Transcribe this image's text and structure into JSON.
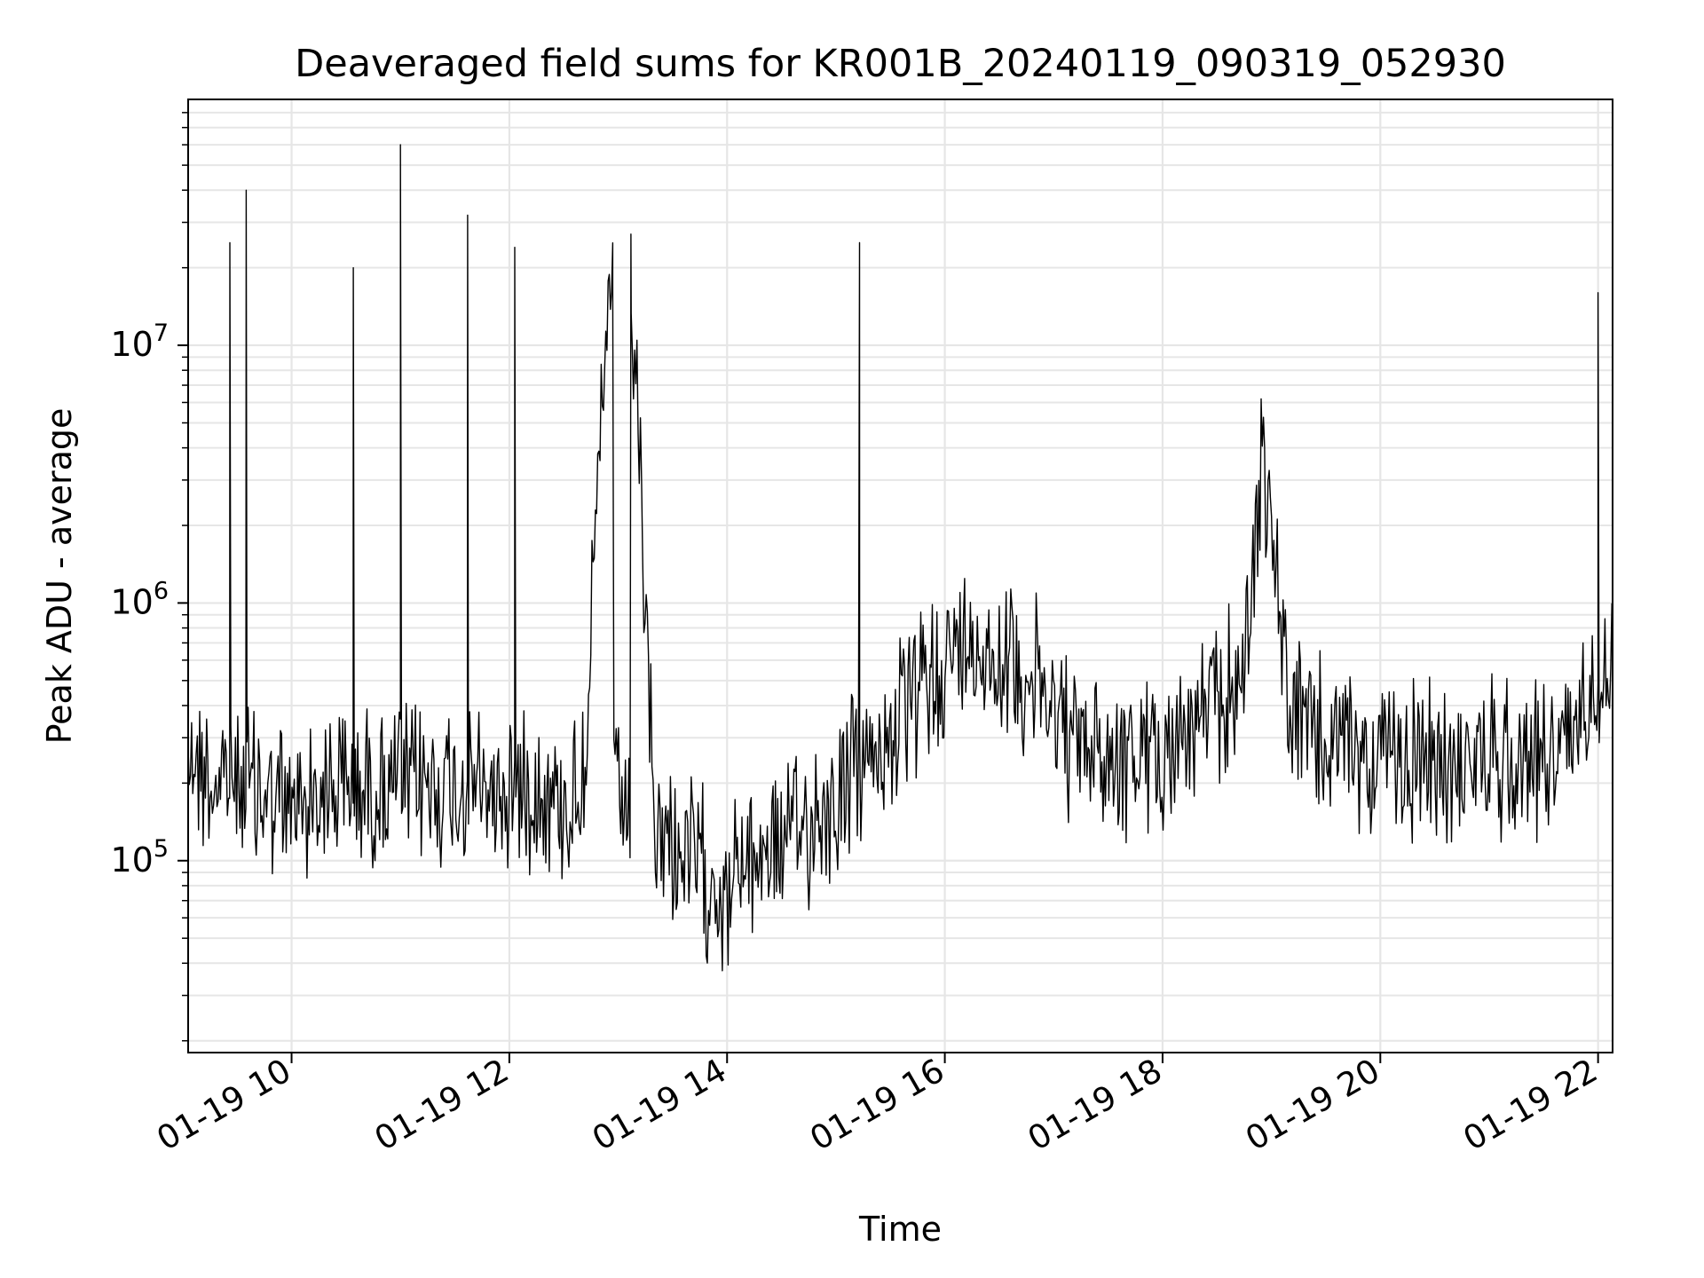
{
  "chart_data": {
    "type": "line",
    "title": "Deaveraged field sums for KR001B_20240119_090319_052930",
    "xlabel": "Time",
    "ylabel": "Peak ADU - average",
    "y_scale": "log",
    "grid": true,
    "grid_minor": true,
    "legend": "none",
    "line_color": "#000000",
    "grid_color": "#e6e6e6",
    "xlim": [
      "2024-01-19 09:03",
      "2024-01-19 22:08"
    ],
    "ylim": [
      18000,
      90000000
    ],
    "x_ticks": [
      {
        "time": "2024-01-19 10:00",
        "label": "01-19 10"
      },
      {
        "time": "2024-01-19 12:00",
        "label": "01-19 12"
      },
      {
        "time": "2024-01-19 14:00",
        "label": "01-19 14"
      },
      {
        "time": "2024-01-19 16:00",
        "label": "01-19 16"
      },
      {
        "time": "2024-01-19 18:00",
        "label": "01-19 18"
      },
      {
        "time": "2024-01-19 20:00",
        "label": "01-19 20"
      },
      {
        "time": "2024-01-19 22:00",
        "label": "01-19 22"
      }
    ],
    "y_ticks": [
      {
        "value": 100000,
        "base": "10",
        "exp": "5"
      },
      {
        "value": 1000000,
        "base": "10",
        "exp": "6"
      },
      {
        "value": 10000000,
        "base": "10",
        "exp": "7"
      }
    ],
    "series": [
      {
        "x": [
          "2024-01-19 09:03",
          "2024-01-19 09:10",
          "2024-01-19 09:20",
          "2024-01-19 09:26",
          "2024-01-19 09:30",
          "2024-01-19 09:35",
          "2024-01-19 09:40",
          "2024-01-19 09:50",
          "2024-01-19 10:00",
          "2024-01-19 10:20",
          "2024-01-19 10:34",
          "2024-01-19 10:45",
          "2024-01-19 11:00",
          "2024-01-19 11:15",
          "2024-01-19 11:37",
          "2024-01-19 11:50",
          "2024-01-19 12:00",
          "2024-01-19 12:03",
          "2024-01-19 12:15",
          "2024-01-19 12:30",
          "2024-01-19 12:40",
          "2024-01-19 12:57",
          "2024-01-19 13:07",
          "2024-01-19 13:20",
          "2024-01-19 13:40",
          "2024-01-19 13:55",
          "2024-01-19 14:00",
          "2024-01-19 14:05",
          "2024-01-19 14:20",
          "2024-01-19 14:40",
          "2024-01-19 15:00",
          "2024-01-19 15:10",
          "2024-01-19 15:13",
          "2024-01-19 15:20",
          "2024-01-19 15:40",
          "2024-01-19 16:00",
          "2024-01-19 16:20",
          "2024-01-19 16:40",
          "2024-01-19 16:55",
          "2024-01-19 17:10",
          "2024-01-19 17:30",
          "2024-01-19 17:50",
          "2024-01-19 18:10",
          "2024-01-19 18:30",
          "2024-01-19 18:45",
          "2024-01-19 18:55",
          "2024-01-19 19:10",
          "2024-01-19 19:30",
          "2024-01-19 20:00",
          "2024-01-19 20:30",
          "2024-01-19 21:00",
          "2024-01-19 21:30",
          "2024-01-19 21:45",
          "2024-01-19 21:57",
          "2024-01-19 22:00",
          "2024-01-19 22:08"
        ],
        "y": [
          300000,
          230000,
          190000,
          25000000,
          220000,
          40000000,
          190000,
          170000,
          160000,
          200000,
          20000000,
          190000,
          60000000,
          200000,
          32000000,
          180000,
          190000,
          24000000,
          200000,
          160000,
          190000,
          17000000,
          27000000,
          130000,
          100000,
          80000,
          70000,
          90000,
          110000,
          130000,
          170000,
          220000,
          25000000,
          250000,
          380000,
          600000,
          700000,
          560000,
          450000,
          280000,
          260000,
          240000,
          300000,
          400000,
          550000,
          4000000,
          380000,
          290000,
          250000,
          230000,
          250000,
          260000,
          300000,
          500000,
          16000000,
          700000
        ]
      }
    ]
  }
}
